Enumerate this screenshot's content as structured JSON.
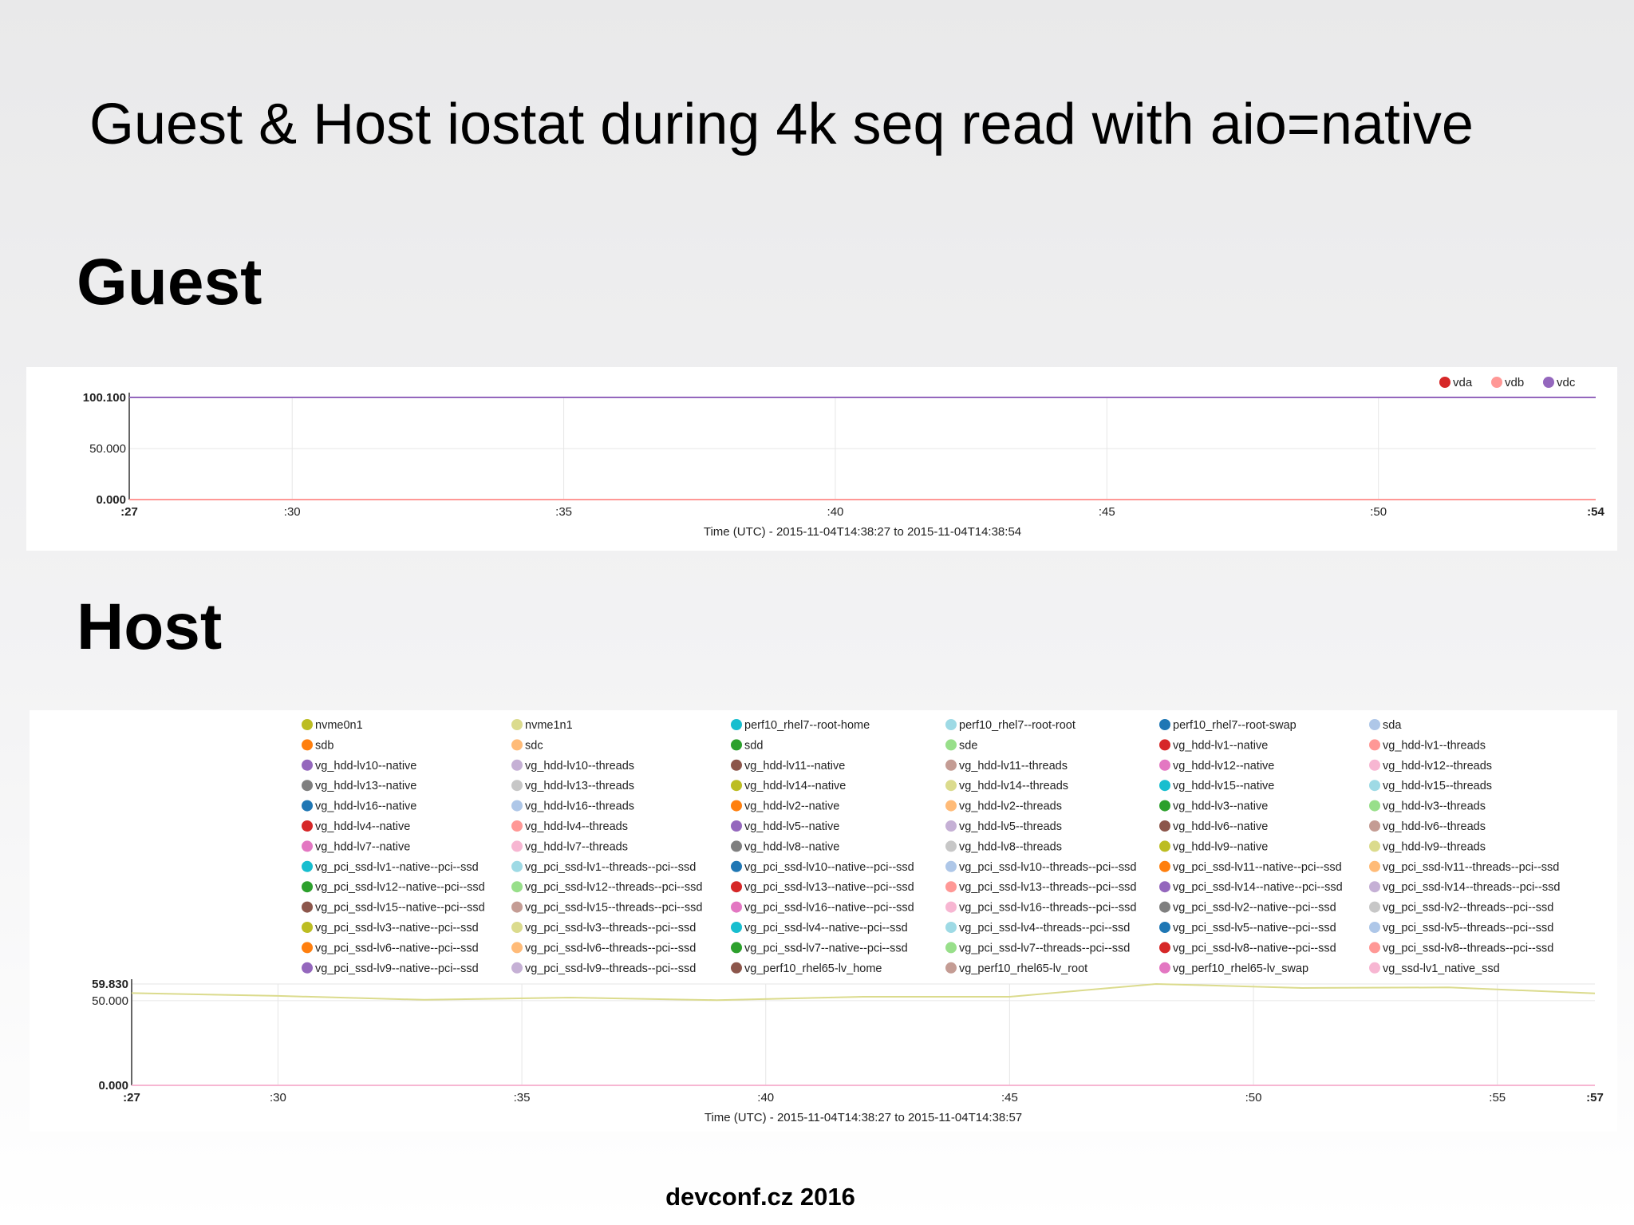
{
  "slide": {
    "title": "Guest & Host iostat during 4k seq read with aio=native",
    "guest_heading": "Guest",
    "host_heading": "Host",
    "footer": "devconf.cz 2016"
  },
  "chart_data": [
    {
      "id": "guest",
      "type": "line",
      "xlabel": "Time (UTC) - 2015-11-04T14:38:27 to 2015-11-04T14:38:54",
      "ylabel": "",
      "x": [
        27,
        54
      ],
      "xlim": [
        27,
        54
      ],
      "ylim": [
        0,
        100.1
      ],
      "x_ticks": [
        ":27",
        ":30",
        ":35",
        ":40",
        ":45",
        ":50",
        ":54"
      ],
      "x_tick_values": [
        27,
        30,
        35,
        40,
        45,
        50,
        54
      ],
      "y_ticks": [
        "0.000",
        "50.000",
        "100.100"
      ],
      "y_tick_values": [
        0,
        50,
        100.1
      ],
      "grid": true,
      "legend_position": "top-right",
      "series": [
        {
          "name": "vda",
          "color": "#d62728",
          "values": [
            0,
            0
          ]
        },
        {
          "name": "vdb",
          "color": "#ff9896",
          "values": [
            0,
            0
          ]
        },
        {
          "name": "vdc",
          "color": "#9467bd",
          "values": [
            100.1,
            100.1
          ]
        }
      ]
    },
    {
      "id": "host",
      "type": "line",
      "xlabel": "Time (UTC) - 2015-11-04T14:38:27 to 2015-11-04T14:38:57",
      "ylabel": "",
      "xlim": [
        27,
        57
      ],
      "ylim": [
        0,
        59.83
      ],
      "x_ticks": [
        ":27",
        ":30",
        ":35",
        ":40",
        ":45",
        ":50",
        ":55",
        ":57"
      ],
      "x_tick_values": [
        27,
        30,
        35,
        40,
        45,
        50,
        55,
        57
      ],
      "y_ticks": [
        "0.000",
        "50.000",
        "59.830"
      ],
      "y_tick_values": [
        0,
        50,
        59.83
      ],
      "grid": true,
      "legend_position": "top",
      "series": [
        {
          "name": "nvme0n1",
          "color": "#bcbd22"
        },
        {
          "name": "nvme1n1",
          "color": "#dbdb8d"
        },
        {
          "name": "perf10_rhel7--root-home",
          "color": "#17becf"
        },
        {
          "name": "perf10_rhel7--root-root",
          "color": "#9edae5"
        },
        {
          "name": "perf10_rhel7--root-swap",
          "color": "#1f77b4"
        },
        {
          "name": "sda",
          "color": "#aec7e8"
        },
        {
          "name": "sdb",
          "color": "#ff7f0e"
        },
        {
          "name": "sdc",
          "color": "#ffbb78"
        },
        {
          "name": "sdd",
          "color": "#2ca02c"
        },
        {
          "name": "sde",
          "color": "#98df8a"
        },
        {
          "name": "vg_hdd-lv1--native",
          "color": "#d62728"
        },
        {
          "name": "vg_hdd-lv1--threads",
          "color": "#ff9896"
        },
        {
          "name": "vg_hdd-lv10--native",
          "color": "#9467bd"
        },
        {
          "name": "vg_hdd-lv10--threads",
          "color": "#c5b0d5"
        },
        {
          "name": "vg_hdd-lv11--native",
          "color": "#8c564b"
        },
        {
          "name": "vg_hdd-lv11--threads",
          "color": "#c49c94"
        },
        {
          "name": "vg_hdd-lv12--native",
          "color": "#e377c2"
        },
        {
          "name": "vg_hdd-lv12--threads",
          "color": "#f7b6d2"
        },
        {
          "name": "vg_hdd-lv13--native",
          "color": "#7f7f7f"
        },
        {
          "name": "vg_hdd-lv13--threads",
          "color": "#c7c7c7"
        },
        {
          "name": "vg_hdd-lv14--native",
          "color": "#bcbd22"
        },
        {
          "name": "vg_hdd-lv14--threads",
          "color": "#dbdb8d"
        },
        {
          "name": "vg_hdd-lv15--native",
          "color": "#17becf"
        },
        {
          "name": "vg_hdd-lv15--threads",
          "color": "#9edae5"
        },
        {
          "name": "vg_hdd-lv16--native",
          "color": "#1f77b4"
        },
        {
          "name": "vg_hdd-lv16--threads",
          "color": "#aec7e8"
        },
        {
          "name": "vg_hdd-lv2--native",
          "color": "#ff7f0e"
        },
        {
          "name": "vg_hdd-lv2--threads",
          "color": "#ffbb78"
        },
        {
          "name": "vg_hdd-lv3--native",
          "color": "#2ca02c"
        },
        {
          "name": "vg_hdd-lv3--threads",
          "color": "#98df8a"
        },
        {
          "name": "vg_hdd-lv4--native",
          "color": "#d62728"
        },
        {
          "name": "vg_hdd-lv4--threads",
          "color": "#ff9896"
        },
        {
          "name": "vg_hdd-lv5--native",
          "color": "#9467bd"
        },
        {
          "name": "vg_hdd-lv5--threads",
          "color": "#c5b0d5"
        },
        {
          "name": "vg_hdd-lv6--native",
          "color": "#8c564b"
        },
        {
          "name": "vg_hdd-lv6--threads",
          "color": "#c49c94"
        },
        {
          "name": "vg_hdd-lv7--native",
          "color": "#e377c2"
        },
        {
          "name": "vg_hdd-lv7--threads",
          "color": "#f7b6d2"
        },
        {
          "name": "vg_hdd-lv8--native",
          "color": "#7f7f7f"
        },
        {
          "name": "vg_hdd-lv8--threads",
          "color": "#c7c7c7"
        },
        {
          "name": "vg_hdd-lv9--native",
          "color": "#bcbd22"
        },
        {
          "name": "vg_hdd-lv9--threads",
          "color": "#dbdb8d"
        },
        {
          "name": "vg_pci_ssd-lv1--native--pci--ssd",
          "color": "#17becf"
        },
        {
          "name": "vg_pci_ssd-lv1--threads--pci--ssd",
          "color": "#9edae5"
        },
        {
          "name": "vg_pci_ssd-lv10--native--pci--ssd",
          "color": "#1f77b4"
        },
        {
          "name": "vg_pci_ssd-lv10--threads--pci--ssd",
          "color": "#aec7e8"
        },
        {
          "name": "vg_pci_ssd-lv11--native--pci--ssd",
          "color": "#ff7f0e"
        },
        {
          "name": "vg_pci_ssd-lv11--threads--pci--ssd",
          "color": "#ffbb78"
        },
        {
          "name": "vg_pci_ssd-lv12--native--pci--ssd",
          "color": "#2ca02c"
        },
        {
          "name": "vg_pci_ssd-lv12--threads--pci--ssd",
          "color": "#98df8a"
        },
        {
          "name": "vg_pci_ssd-lv13--native--pci--ssd",
          "color": "#d62728"
        },
        {
          "name": "vg_pci_ssd-lv13--threads--pci--ssd",
          "color": "#ff9896"
        },
        {
          "name": "vg_pci_ssd-lv14--native--pci--ssd",
          "color": "#9467bd"
        },
        {
          "name": "vg_pci_ssd-lv14--threads--pci--ssd",
          "color": "#c5b0d5"
        },
        {
          "name": "vg_pci_ssd-lv15--native--pci--ssd",
          "color": "#8c564b"
        },
        {
          "name": "vg_pci_ssd-lv15--threads--pci--ssd",
          "color": "#c49c94"
        },
        {
          "name": "vg_pci_ssd-lv16--native--pci--ssd",
          "color": "#e377c2"
        },
        {
          "name": "vg_pci_ssd-lv16--threads--pci--ssd",
          "color": "#f7b6d2"
        },
        {
          "name": "vg_pci_ssd-lv2--native--pci--ssd",
          "color": "#7f7f7f"
        },
        {
          "name": "vg_pci_ssd-lv2--threads--pci--ssd",
          "color": "#c7c7c7"
        },
        {
          "name": "vg_pci_ssd-lv3--native--pci--ssd",
          "color": "#bcbd22"
        },
        {
          "name": "vg_pci_ssd-lv3--threads--pci--ssd",
          "color": "#dbdb8d"
        },
        {
          "name": "vg_pci_ssd-lv4--native--pci--ssd",
          "color": "#17becf"
        },
        {
          "name": "vg_pci_ssd-lv4--threads--pci--ssd",
          "color": "#9edae5"
        },
        {
          "name": "vg_pci_ssd-lv5--native--pci--ssd",
          "color": "#1f77b4"
        },
        {
          "name": "vg_pci_ssd-lv5--threads--pci--ssd",
          "color": "#aec7e8"
        },
        {
          "name": "vg_pci_ssd-lv6--native--pci--ssd",
          "color": "#ff7f0e"
        },
        {
          "name": "vg_pci_ssd-lv6--threads--pci--ssd",
          "color": "#ffbb78"
        },
        {
          "name": "vg_pci_ssd-lv7--native--pci--ssd",
          "color": "#2ca02c"
        },
        {
          "name": "vg_pci_ssd-lv7--threads--pci--ssd",
          "color": "#98df8a"
        },
        {
          "name": "vg_pci_ssd-lv8--native--pci--ssd",
          "color": "#d62728"
        },
        {
          "name": "vg_pci_ssd-lv8--threads--pci--ssd",
          "color": "#ff9896"
        },
        {
          "name": "vg_pci_ssd-lv9--native--pci--ssd",
          "color": "#9467bd"
        },
        {
          "name": "vg_pci_ssd-lv9--threads--pci--ssd",
          "color": "#c5b0d5"
        },
        {
          "name": "vg_perf10_rhel65-lv_home",
          "color": "#8c564b"
        },
        {
          "name": "vg_perf10_rhel65-lv_root",
          "color": "#c49c94"
        },
        {
          "name": "vg_perf10_rhel65-lv_swap",
          "color": "#e377c2"
        },
        {
          "name": "vg_ssd-lv1_native_ssd",
          "color": "#f7b6d2"
        }
      ],
      "plotted": [
        {
          "name": "nvme1n1",
          "color": "#dbdb8d",
          "x": [
            27,
            30,
            33,
            36,
            39,
            42,
            45,
            48,
            51,
            54,
            57
          ],
          "values": [
            54.5,
            52.8,
            50.5,
            51.8,
            50.3,
            52.3,
            52.3,
            59.83,
            57.5,
            57.8,
            54.3
          ]
        },
        {
          "name": "vg_ssd-lv1_native_ssd",
          "color": "#f7b6d2",
          "x": [
            27,
            57
          ],
          "values": [
            0,
            0
          ]
        }
      ]
    }
  ]
}
